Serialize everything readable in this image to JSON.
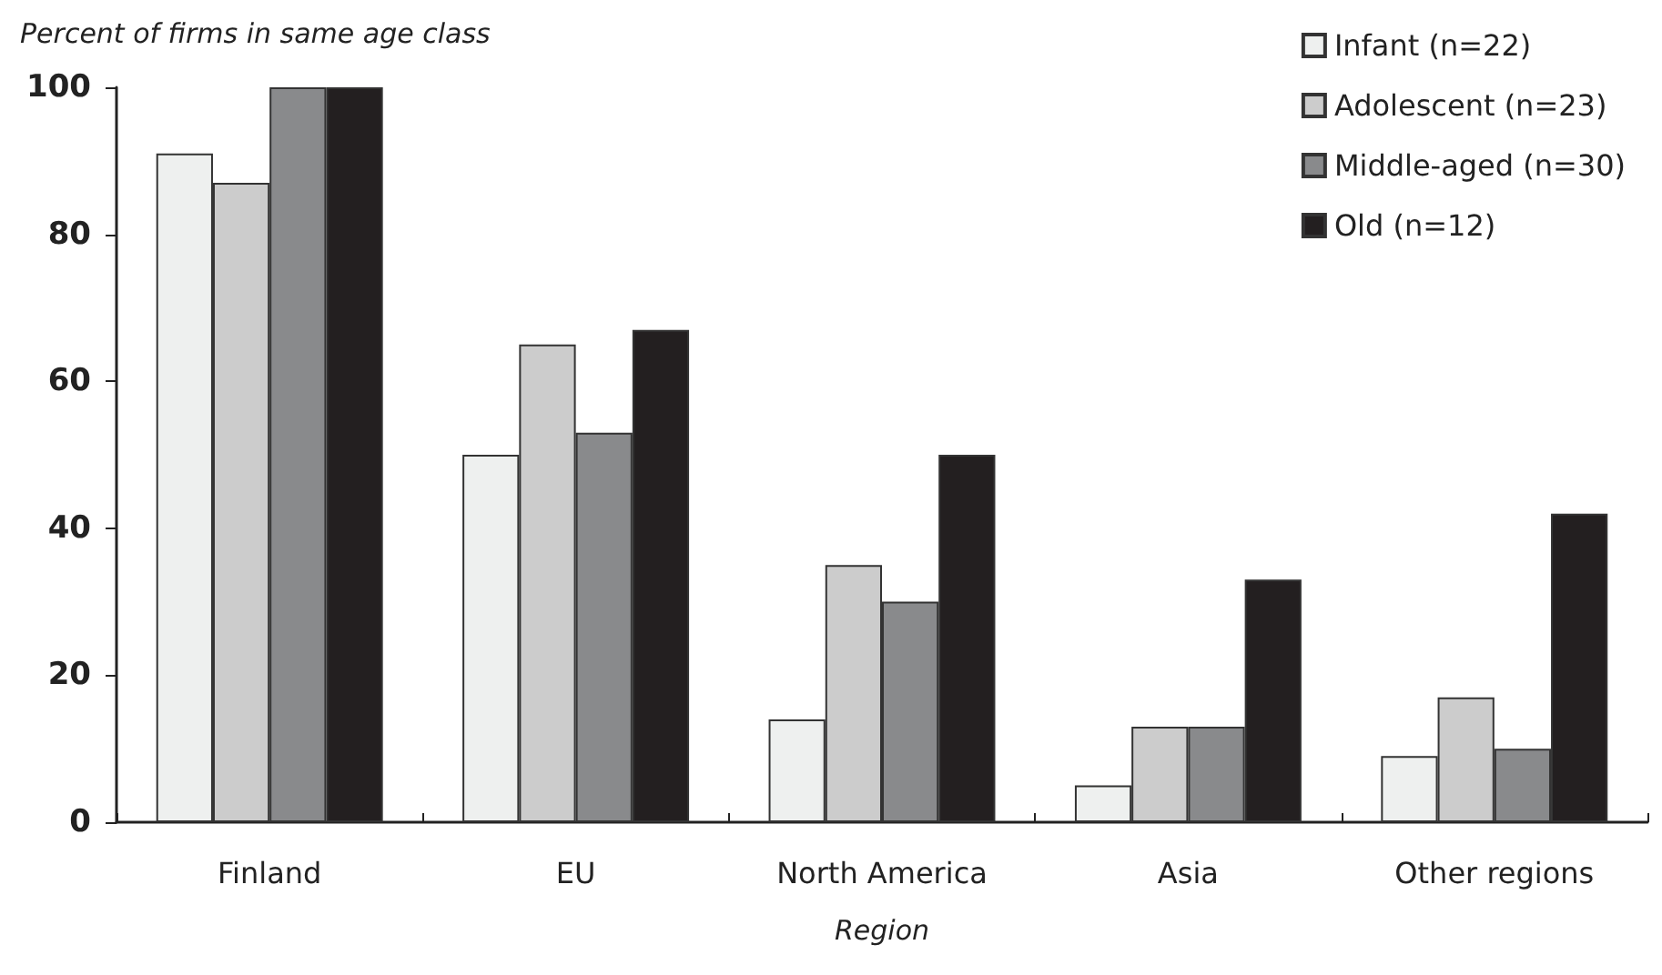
{
  "chart_data": {
    "type": "bar",
    "ylabel": "Percent of firms in same age class",
    "xlabel": "Region",
    "categories": [
      "Finland",
      "EU",
      "North America",
      "Asia",
      "Other regions"
    ],
    "series": [
      {
        "name": "Infant (n=22)",
        "color": "#eef0ef",
        "values": [
          91,
          50,
          14,
          5,
          9
        ]
      },
      {
        "name": "Adolescent (n=23)",
        "color": "#cccccc",
        "values": [
          87,
          65,
          35,
          13,
          17
        ]
      },
      {
        "name": "Middle-aged (n=30)",
        "color": "#898a8c",
        "values": [
          100,
          53,
          30,
          13,
          10
        ]
      },
      {
        "name": "Old (n=12)",
        "color": "#231f20",
        "values": [
          100,
          67,
          50,
          33,
          42
        ]
      }
    ],
    "ylim": [
      0,
      100
    ],
    "yticks": [
      0,
      20,
      40,
      60,
      80,
      100
    ],
    "grid": false,
    "legend": "top right"
  }
}
